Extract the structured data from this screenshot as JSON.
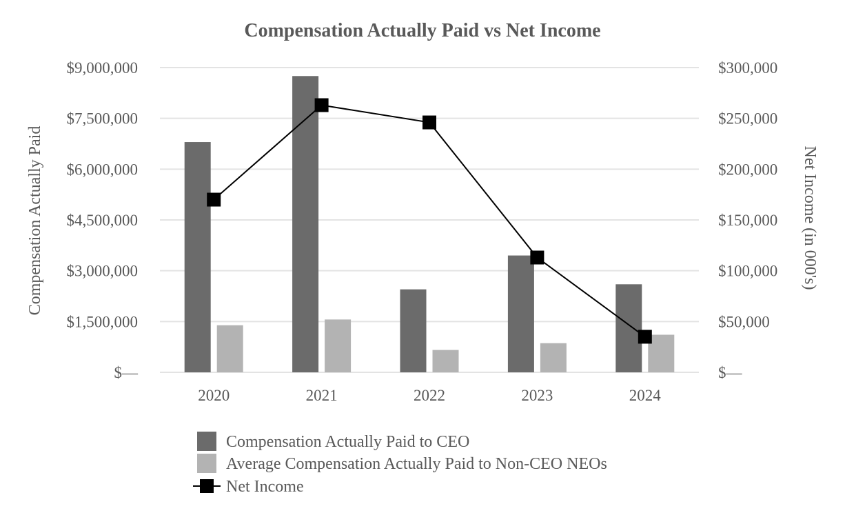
{
  "chart_data": {
    "type": "bar",
    "title": "Compensation Actually Paid vs Net Income",
    "categories": [
      "2020",
      "2021",
      "2022",
      "2023",
      "2024"
    ],
    "y_left": {
      "label": "Compensation Actually Paid",
      "range": [
        0,
        9000000
      ],
      "ticks": [
        {
          "value": 0,
          "label": "$—"
        },
        {
          "value": 1500000,
          "label": "$1,500,000"
        },
        {
          "value": 3000000,
          "label": "$3,000,000"
        },
        {
          "value": 4500000,
          "label": "$4,500,000"
        },
        {
          "value": 6000000,
          "label": "$6,000,000"
        },
        {
          "value": 7500000,
          "label": "$7,500,000"
        },
        {
          "value": 9000000,
          "label": "$9,000,000"
        }
      ]
    },
    "y_right": {
      "label": "Net Income (in 000's)",
      "range": [
        0,
        300000
      ],
      "ticks": [
        {
          "value": 0,
          "label": "$—"
        },
        {
          "value": 50000,
          "label": "$50,000"
        },
        {
          "value": 100000,
          "label": "$100,000"
        },
        {
          "value": 150000,
          "label": "$150,000"
        },
        {
          "value": 200000,
          "label": "$200,000"
        },
        {
          "value": 250000,
          "label": "$250,000"
        },
        {
          "value": 300000,
          "label": "$300,000"
        }
      ]
    },
    "grid": true,
    "legend_position": "bottom",
    "series": [
      {
        "name": "Compensation Actually Paid to CEO",
        "type": "bar",
        "axis": "left",
        "color": "#6b6b6b",
        "values": [
          6800000,
          8750000,
          2450000,
          3450000,
          2600000
        ]
      },
      {
        "name": "Average Compensation Actually Paid to Non-CEO NEOs",
        "type": "bar",
        "axis": "left",
        "color": "#b3b3b3",
        "values": [
          1390000,
          1560000,
          660000,
          860000,
          1110000
        ]
      },
      {
        "name": "Net Income",
        "type": "line",
        "axis": "right",
        "color": "#000000",
        "values": [
          170000,
          263000,
          246000,
          113000,
          35000
        ]
      }
    ]
  }
}
